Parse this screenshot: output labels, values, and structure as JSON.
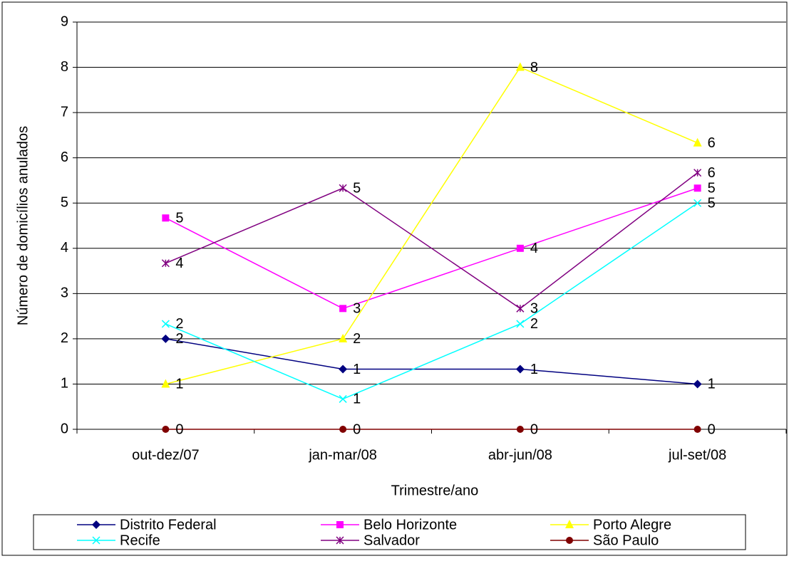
{
  "chart_data": {
    "type": "line",
    "x_label": "Trimestre/ano",
    "y_label": "Número de domicílios anulados",
    "categories": [
      "out-dez/07",
      "jan-mar/08",
      "abr-jun/08",
      "jul-set/08"
    ],
    "ylim": [
      0,
      9
    ],
    "yticks": [
      0,
      1,
      2,
      3,
      4,
      5,
      6,
      7,
      8,
      9
    ],
    "grid": true,
    "legend": "bottom",
    "series": [
      {
        "name": "Distrito Federal",
        "color": "#000080",
        "marker": "diamond",
        "values": [
          2,
          1.33,
          1.33,
          1
        ],
        "value_labels": [
          "2",
          "1",
          "1",
          "1"
        ]
      },
      {
        "name": "Belo Horizonte",
        "color": "#ff00ff",
        "marker": "square",
        "values": [
          4.67,
          2.67,
          4,
          5.33
        ],
        "value_labels": [
          "5",
          "3",
          "4",
          "5"
        ]
      },
      {
        "name": "Porto Alegre",
        "color": "#ffff00",
        "marker": "triangle",
        "values": [
          1,
          2,
          8,
          6.33
        ],
        "value_labels": [
          "1",
          "2",
          "8",
          "6"
        ]
      },
      {
        "name": "Recife",
        "color": "#00ffff",
        "marker": "x",
        "values": [
          2.33,
          0.67,
          2.33,
          5
        ],
        "value_labels": [
          "2",
          "1",
          "2",
          "5"
        ]
      },
      {
        "name": "Salvador",
        "color": "#800080",
        "marker": "asterisk",
        "values": [
          3.67,
          5.33,
          2.67,
          5.67
        ],
        "value_labels": [
          "4",
          "5",
          "3",
          "6"
        ]
      },
      {
        "name": "São Paulo",
        "color": "#800000",
        "marker": "circle",
        "values": [
          0,
          0,
          0,
          0
        ]
      }
    ]
  }
}
